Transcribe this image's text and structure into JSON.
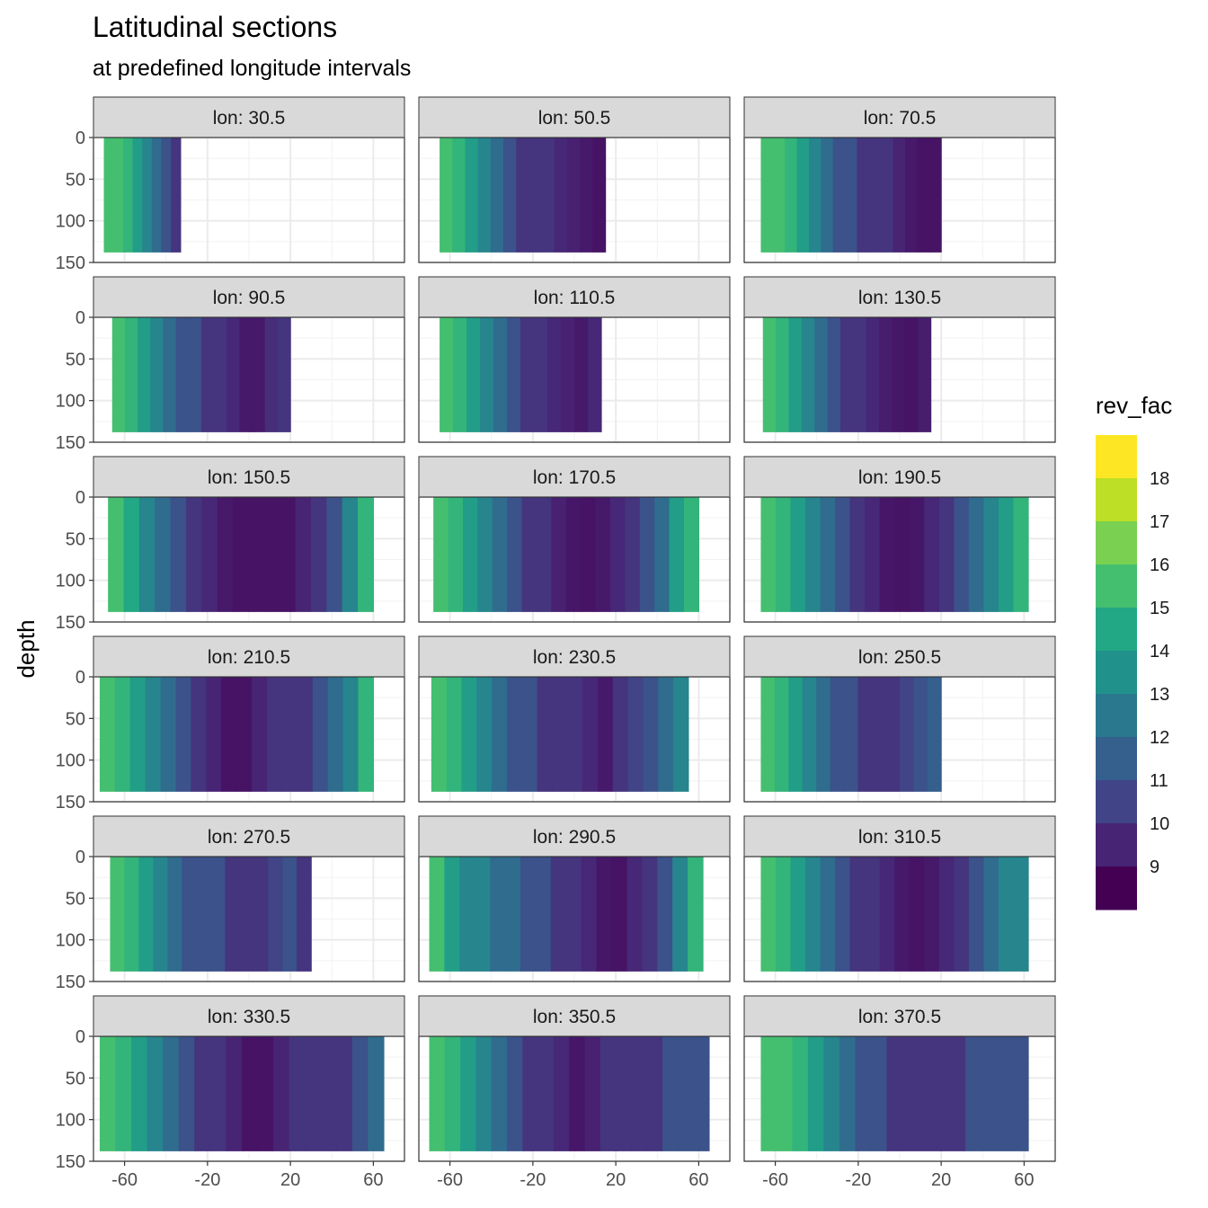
{
  "title": "Latitudinal sections",
  "subtitle": "at predefined longitude intervals",
  "chart_data": {
    "type": "heatmap",
    "title": "Latitudinal sections",
    "subtitle": "at predefined longitude intervals",
    "xlabel": "",
    "ylabel": "depth",
    "xlim": [
      -75,
      75
    ],
    "ylim": [
      150,
      0
    ],
    "x_ticks": [
      -60,
      -20,
      20,
      60
    ],
    "y_ticks": [
      0,
      50,
      100,
      150
    ],
    "facet_var": "lon",
    "facets": [
      {
        "label": "lon: 30.5",
        "lat_range": [
          -70,
          -33
        ],
        "max_depth": 138,
        "bands": [
          15.5,
          15.5,
          15,
          14,
          13,
          12,
          11,
          10
        ]
      },
      {
        "label": "lon: 50.5",
        "lat_range": [
          -65,
          15
        ],
        "max_depth": 138,
        "bands": [
          15.5,
          15,
          14,
          13,
          12,
          11,
          10,
          10,
          10,
          9.6,
          9.4,
          9.2,
          9
        ]
      },
      {
        "label": "lon: 70.5",
        "lat_range": [
          -67,
          20
        ],
        "max_depth": 138,
        "bands": [
          15.5,
          15.5,
          15,
          14,
          13,
          12,
          11,
          11,
          10,
          10,
          10,
          9.5,
          9.2,
          9,
          9
        ]
      },
      {
        "label": "lon: 90.5",
        "lat_range": [
          -66,
          20
        ],
        "max_depth": 138,
        "bands": [
          15.5,
          15,
          14,
          13,
          12,
          11,
          11,
          10,
          10,
          9.6,
          9.2,
          9.2,
          9.8,
          10
        ]
      },
      {
        "label": "lon: 110.5",
        "lat_range": [
          -65,
          13
        ],
        "max_depth": 138,
        "bands": [
          15.5,
          15,
          14,
          13,
          12,
          11,
          10,
          10,
          9.6,
          9.4,
          9.2,
          9.6
        ]
      },
      {
        "label": "lon: 130.5",
        "lat_range": [
          -66,
          15
        ],
        "max_depth": 138,
        "bands": [
          15.5,
          15,
          14,
          13,
          12,
          11,
          10,
          10,
          9.6,
          9.3,
          9.1,
          9,
          9.3
        ]
      },
      {
        "label": "lon: 150.5",
        "lat_range": [
          -68,
          60
        ],
        "max_depth": 138,
        "bands": [
          15.5,
          14.5,
          13,
          12,
          11,
          10,
          9.6,
          9.2,
          9,
          9,
          9,
          9,
          9.5,
          10,
          11,
          13,
          15
        ]
      },
      {
        "label": "lon: 170.5",
        "lat_range": [
          -68,
          60
        ],
        "max_depth": 138,
        "bands": [
          15.5,
          15,
          14,
          13,
          12,
          11,
          10,
          10,
          9.4,
          9.1,
          9,
          9.2,
          9.6,
          10,
          11,
          12,
          14,
          15
        ]
      },
      {
        "label": "lon: 190.5",
        "lat_range": [
          -67,
          62
        ],
        "max_depth": 138,
        "bands": [
          15.5,
          15,
          14,
          13,
          12,
          11,
          10,
          9.6,
          9.1,
          9,
          9.1,
          9.6,
          10,
          11,
          12,
          13,
          14,
          15
        ]
      },
      {
        "label": "lon: 210.5",
        "lat_range": [
          -72,
          60
        ],
        "max_depth": 138,
        "bands": [
          15.5,
          15,
          14,
          13,
          12,
          11,
          10,
          9.5,
          9,
          9,
          9.5,
          10,
          10,
          10,
          11,
          12,
          13,
          15
        ]
      },
      {
        "label": "lon: 230.5",
        "lat_range": [
          -69,
          55
        ],
        "max_depth": 138,
        "bands": [
          15.5,
          15,
          14,
          13,
          12,
          11,
          11,
          10,
          10,
          10,
          9.6,
          9.2,
          10,
          10.5,
          11,
          12,
          13
        ]
      },
      {
        "label": "lon: 250.5",
        "lat_range": [
          -67,
          20
        ],
        "max_depth": 138,
        "bands": [
          15.5,
          15,
          14,
          13,
          12,
          11,
          11,
          10,
          10,
          10,
          10.5,
          11,
          11.5
        ]
      },
      {
        "label": "lon: 270.5",
        "lat_range": [
          -67,
          30
        ],
        "max_depth": 138,
        "bands": [
          15.5,
          15,
          14,
          13,
          12,
          11,
          11,
          11,
          10,
          10,
          10,
          10.5,
          11,
          10
        ]
      },
      {
        "label": "lon: 290.5",
        "lat_range": [
          -70,
          62
        ],
        "max_depth": 138,
        "bands": [
          15.5,
          14,
          13,
          13,
          12,
          12,
          11,
          11,
          10,
          10,
          9.6,
          9.1,
          9,
          9.6,
          10,
          11,
          13,
          15
        ]
      },
      {
        "label": "lon: 310.5",
        "lat_range": [
          -67,
          62
        ],
        "max_depth": 138,
        "bands": [
          15.5,
          15,
          14,
          13,
          12,
          11,
          10,
          10,
          9.6,
          9.2,
          9,
          9.2,
          9.6,
          10,
          11,
          12,
          13,
          13
        ]
      },
      {
        "label": "lon: 330.5",
        "lat_range": [
          -72,
          65
        ],
        "max_depth": 138,
        "bands": [
          15.5,
          15,
          14,
          13,
          12,
          11,
          10,
          10,
          9.5,
          9,
          9,
          9.5,
          10,
          10,
          10,
          10,
          11,
          12
        ]
      },
      {
        "label": "lon: 350.5",
        "lat_range": [
          -70,
          65
        ],
        "max_depth": 138,
        "bands": [
          15.5,
          15,
          14,
          13,
          12,
          11,
          10,
          10,
          9.6,
          9.1,
          9.4,
          10,
          10,
          10,
          10,
          11,
          11,
          11
        ]
      },
      {
        "label": "lon: 370.5",
        "lat_range": [
          -67,
          62
        ],
        "max_depth": 138,
        "bands": [
          15.5,
          15.5,
          15,
          14,
          13,
          12,
          11,
          11,
          10,
          10,
          10,
          10,
          10,
          11,
          11,
          11,
          11
        ]
      }
    ],
    "legend": {
      "title": "rev_fac",
      "position": "right",
      "labels": [
        "18",
        "17",
        "16",
        "15",
        "14",
        "13",
        "12",
        "11",
        "10",
        "9"
      ],
      "colors": [
        "#FDE725",
        "#BDDF26",
        "#7AD151",
        "#44BF70",
        "#22A884",
        "#21918C",
        "#2A788E",
        "#355F8D",
        "#414487",
        "#482475",
        "#440154"
      ]
    }
  }
}
